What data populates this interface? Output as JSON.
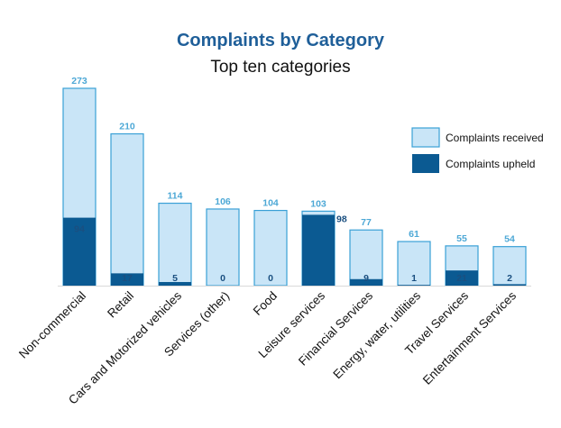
{
  "chart_data": {
    "type": "bar",
    "title": "Complaints by Category",
    "subtitle": "Top ten categories",
    "categories": [
      "Non-commercial",
      "Retail",
      "Cars and Motorized vehicles",
      "Services (other)",
      "Food",
      "Leisure services",
      "Financial Services",
      "Energy, water, utilities",
      "Travel Services",
      "Entertainment Services"
    ],
    "series": [
      {
        "name": "Complaints received",
        "values": [
          273,
          210,
          114,
          106,
          104,
          103,
          77,
          61,
          55,
          54
        ]
      },
      {
        "name": "Complaints upheld",
        "values": [
          94,
          17,
          5,
          0,
          0,
          98,
          9,
          1,
          21,
          2
        ]
      }
    ],
    "ylim": [
      0,
      273
    ],
    "grid": false,
    "legend_position": "right",
    "colors": {
      "received_fill": "#c9e5f7",
      "received_stroke": "#3aa0d6",
      "upheld_fill": "#0b5a92",
      "received_label": "#4da8d6",
      "upheld_label": "#1a4f80",
      "title": "#1f5f99"
    }
  }
}
